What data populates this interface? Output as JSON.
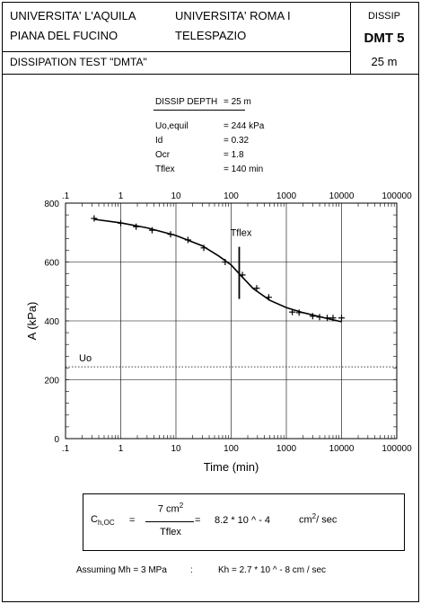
{
  "header": {
    "org1_line1": "UNIVERSITA' L'AQUILA",
    "org1_line2": "PIANA DEL FUCINO",
    "org2_line1": "UNIVERSITA'  ROMA I",
    "org2_line2": "TELESPAZIO",
    "test_title": "DISSIPATION TEST  \"DMTA\"",
    "type_label": "DISSIP",
    "test_id": "DMT 5",
    "depth": "25 m"
  },
  "params": [
    {
      "label": "DISSIP DEPTH",
      "value": "=  25 m"
    },
    {
      "label": "Uo,equil",
      "value": "=    244 kPa"
    },
    {
      "label": "Id",
      "value": "=    0.32"
    },
    {
      "label": "Ocr",
      "value": "=    1.8"
    },
    {
      "label": "Tflex",
      "value": "=    140 min"
    }
  ],
  "formula": {
    "lhs_main": "C",
    "lhs_sub": "h,OC",
    "eq1": "=",
    "numerator": "7 cm",
    "numerator_sup": "2",
    "denominator": "Tflex",
    "eq2": "=",
    "result": "8.2 * 10 ^ - 4",
    "unit": "cm",
    "unit_sup": "2",
    "unit_rest": "/  sec"
  },
  "footer": {
    "assumption": "Assuming Mh = 3 MPa",
    "sep": ":",
    "kh": "Kh = 2.7 * 10 ^ - 8 cm / sec"
  },
  "chart_data": {
    "type": "scatter",
    "xscale": "log",
    "xlim": [
      0.1,
      100000
    ],
    "ylim": [
      0,
      800
    ],
    "xticks": [
      ".1",
      "1",
      "10",
      "100",
      "1000",
      "10000",
      "100000"
    ],
    "xtick_values": [
      0.1,
      1,
      10,
      100,
      1000,
      10000,
      100000
    ],
    "yticks": [
      "0",
      "200",
      "400",
      "600",
      "800"
    ],
    "ytick_values": [
      0,
      200,
      400,
      600,
      800
    ],
    "xlabel": "Time  (min)",
    "ylabel": "A  (kPa)",
    "grid": true,
    "points": [
      {
        "x": 0.33,
        "y": 748
      },
      {
        "x": 1.0,
        "y": 732
      },
      {
        "x": 1.9,
        "y": 720
      },
      {
        "x": 3.7,
        "y": 708
      },
      {
        "x": 8.0,
        "y": 694
      },
      {
        "x": 16.5,
        "y": 675
      },
      {
        "x": 32,
        "y": 648
      },
      {
        "x": 78,
        "y": 600
      },
      {
        "x": 160,
        "y": 556
      },
      {
        "x": 290,
        "y": 511
      },
      {
        "x": 480,
        "y": 480
      },
      {
        "x": 1280,
        "y": 430
      },
      {
        "x": 1700,
        "y": 428
      },
      {
        "x": 3000,
        "y": 416
      },
      {
        "x": 4000,
        "y": 413
      },
      {
        "x": 5500,
        "y": 410
      },
      {
        "x": 7000,
        "y": 410
      },
      {
        "x": 10000,
        "y": 410
      }
    ],
    "fit_curve": [
      {
        "x": 0.33,
        "y": 745
      },
      {
        "x": 1,
        "y": 733
      },
      {
        "x": 3,
        "y": 716
      },
      {
        "x": 10,
        "y": 690
      },
      {
        "x": 30,
        "y": 655
      },
      {
        "x": 60,
        "y": 620
      },
      {
        "x": 100,
        "y": 590
      },
      {
        "x": 140,
        "y": 560
      },
      {
        "x": 250,
        "y": 510
      },
      {
        "x": 500,
        "y": 470
      },
      {
        "x": 1000,
        "y": 445
      },
      {
        "x": 2000,
        "y": 428
      },
      {
        "x": 5000,
        "y": 410
      },
      {
        "x": 10000,
        "y": 397
      }
    ],
    "uo_level": 244,
    "uo_label": "Uo",
    "tflex_x": 140,
    "tflex_label": "Tflex"
  }
}
